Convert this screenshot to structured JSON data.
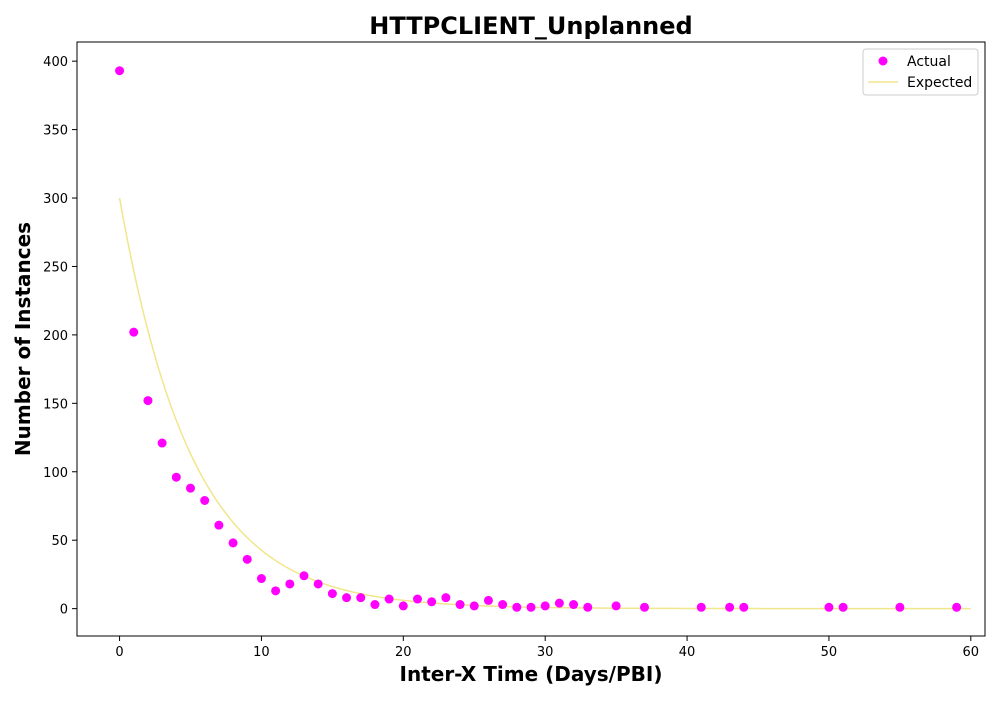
{
  "chart_data": {
    "type": "scatter",
    "title": "HTTPCLIENT_Unplanned",
    "xlabel": "Inter-X Time (Days/PBI)",
    "ylabel": "Number of Instances",
    "xlim": [
      -3,
      61
    ],
    "ylim": [
      -20,
      414
    ],
    "xticks": [
      0,
      10,
      20,
      30,
      40,
      50,
      60
    ],
    "yticks": [
      0,
      50,
      100,
      150,
      200,
      250,
      300,
      350,
      400
    ],
    "legend_position": "top-right",
    "grid": false,
    "series": [
      {
        "name": "Actual",
        "kind": "scatter",
        "color": "#ff00ff",
        "points": [
          [
            0,
            393
          ],
          [
            1,
            202
          ],
          [
            2,
            152
          ],
          [
            3,
            121
          ],
          [
            4,
            96
          ],
          [
            5,
            88
          ],
          [
            6,
            79
          ],
          [
            7,
            61
          ],
          [
            8,
            48
          ],
          [
            9,
            36
          ],
          [
            10,
            22
          ],
          [
            11,
            13
          ],
          [
            12,
            18
          ],
          [
            13,
            24
          ],
          [
            14,
            18
          ],
          [
            15,
            11
          ],
          [
            16,
            8
          ],
          [
            17,
            8
          ],
          [
            18,
            3
          ],
          [
            19,
            7
          ],
          [
            20,
            2
          ],
          [
            21,
            7
          ],
          [
            22,
            5
          ],
          [
            23,
            8
          ],
          [
            24,
            3
          ],
          [
            25,
            2
          ],
          [
            26,
            6
          ],
          [
            27,
            3
          ],
          [
            28,
            1
          ],
          [
            29,
            1
          ],
          [
            30,
            2
          ],
          [
            31,
            4
          ],
          [
            32,
            3
          ],
          [
            33,
            1
          ],
          [
            35,
            2
          ],
          [
            37,
            1
          ],
          [
            41,
            1
          ],
          [
            43,
            1
          ],
          [
            44,
            1
          ],
          [
            50,
            1
          ],
          [
            51,
            1
          ],
          [
            55,
            1
          ],
          [
            59,
            1
          ]
        ]
      },
      {
        "name": "Expected",
        "kind": "line",
        "color": "#f0e68c",
        "model": "exponential",
        "a": 300,
        "rate": 0.195,
        "x_range": [
          0,
          60
        ]
      }
    ]
  }
}
